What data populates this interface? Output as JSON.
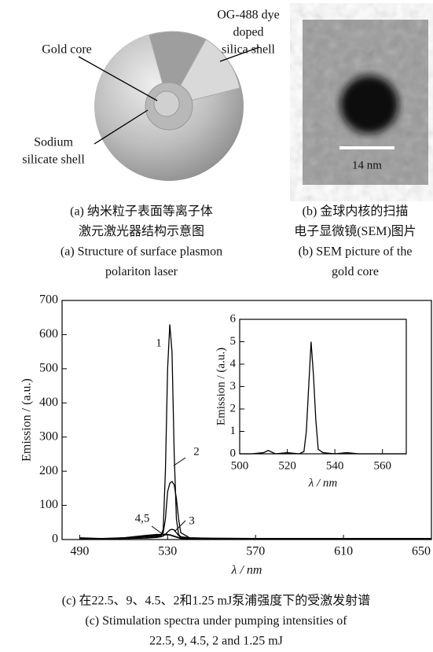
{
  "panel_a": {
    "labels": {
      "shell": [
        "OG-488 dye",
        "doped",
        "silica shell"
      ],
      "core": [
        "Gold core"
      ],
      "silicate": [
        "Sodium",
        "silicate shell"
      ]
    },
    "caption": [
      "(a) 纳米粒子表面等离子体",
      "激元激光器结构示意图",
      "(a) Structure of surface plasmon",
      "polariton laser"
    ]
  },
  "panel_b": {
    "scale_label": "14 nm",
    "caption": [
      "(b) 金球内核的扫描",
      "电子显微镜(SEM)图片",
      "(b) SEM picture of the",
      "gold core"
    ]
  },
  "panel_c": {
    "caption": [
      "(c) 在22.5、9、4.5、2和1.25 mJ泵浦强度下的受激发射谱",
      "(c) Stimulation spectra under pumping intensities of",
      "22.5, 9, 4.5, 2 and 1.25 mJ"
    ]
  },
  "chart_data": [
    {
      "type": "line",
      "x_label": "λ / nm",
      "y_label": "Emission / (a.u.)",
      "xlim": [
        482,
        650
      ],
      "xticks": [
        490,
        530,
        570,
        610,
        650
      ],
      "ylim": [
        0,
        700
      ],
      "yticks": [
        0,
        100,
        200,
        300,
        400,
        500,
        600,
        700
      ],
      "x": [
        490,
        500,
        510,
        520,
        525,
        527,
        528,
        529,
        530,
        531,
        532,
        533,
        534,
        535,
        536,
        540,
        550,
        570,
        610,
        650
      ],
      "series": [
        {
          "color": "#000000",
          "values": [
            5,
            3,
            5,
            8,
            10,
            12,
            30,
            200,
            500,
            630,
            550,
            250,
            60,
            15,
            8,
            5,
            4,
            3,
            3,
            3
          ]
        },
        {
          "color": "#000000",
          "values": [
            3,
            3,
            3,
            5,
            8,
            10,
            20,
            60,
            140,
            165,
            170,
            160,
            120,
            60,
            20,
            5,
            3,
            3,
            3,
            3
          ]
        },
        {
          "color": "#000000",
          "values": [
            2,
            2,
            3,
            4,
            6,
            8,
            10,
            15,
            22,
            28,
            30,
            28,
            20,
            12,
            6,
            3,
            2,
            2,
            2,
            2
          ]
        },
        {
          "color": "#000000",
          "values": [
            2,
            2,
            5,
            12,
            15,
            15,
            15,
            16,
            15,
            14,
            12,
            10,
            8,
            6,
            4,
            3,
            2,
            2,
            2,
            2
          ]
        },
        {
          "color": "#000000",
          "values": [
            2,
            2,
            4,
            10,
            13,
            14,
            14,
            14,
            14,
            13,
            11,
            9,
            7,
            5,
            3,
            2,
            2,
            2,
            2,
            2
          ]
        }
      ],
      "annotations": [
        "1",
        "2",
        "3",
        "4,5"
      ]
    },
    {
      "type": "line",
      "x_label": "λ / nm",
      "y_label": "Emission / (a.u.)",
      "xlim": [
        500,
        570
      ],
      "xticks": [
        500,
        520,
        540,
        560
      ],
      "ylim": [
        0,
        6
      ],
      "yticks": [
        0,
        1,
        2,
        3,
        4,
        5,
        6
      ],
      "x": [
        500,
        505,
        510,
        512,
        515,
        520,
        525,
        527,
        528,
        529,
        530,
        531,
        532,
        533,
        535,
        540,
        545,
        550,
        560,
        570
      ],
      "series": [
        {
          "color": "#000000",
          "values": [
            0,
            0,
            0.05,
            0.15,
            0,
            0.05,
            0,
            0.1,
            1,
            3,
            5,
            3.5,
            1.5,
            0.2,
            0.05,
            0,
            0.05,
            0,
            0,
            0
          ]
        }
      ]
    }
  ]
}
